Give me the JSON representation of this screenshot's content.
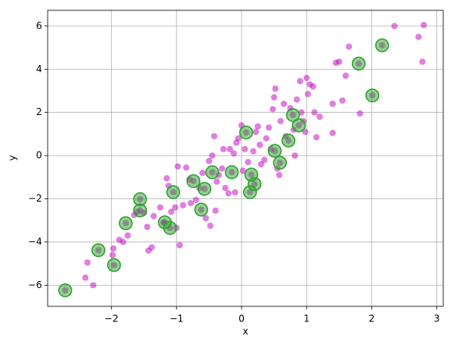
{
  "chart_data": {
    "type": "scatter",
    "x_label": "x",
    "y_label": "y",
    "xlim": [
      -2.98,
      3.1
    ],
    "ylim": [
      -6.98,
      6.73
    ],
    "xticks": [
      {
        "value": -2,
        "label": "−2"
      },
      {
        "value": -1,
        "label": "−1"
      },
      0,
      1,
      2,
      3
    ],
    "yticks": [
      {
        "value": -6,
        "label": "−6"
      },
      {
        "value": -4,
        "label": "−4"
      },
      {
        "value": -2,
        "label": "−2"
      },
      0,
      2,
      4,
      6
    ],
    "grid": true,
    "series": [
      {
        "color": "#bf00bf",
        "x": [
          -2.71,
          -2.4,
          -2.37,
          -2.28,
          -2.2,
          -1.96,
          -1.98,
          -1.97,
          -1.88,
          -1.82,
          -1.78,
          -1.75,
          -1.65,
          -1.6,
          -1.56,
          -1.56,
          -1.5,
          -1.45,
          -1.43,
          -1.38,
          -1.35,
          -1.25,
          -1.2,
          -1.18,
          -1.15,
          -1.12,
          -1.1,
          -1.08,
          -1.05,
          -1.02,
          -1.0,
          -0.98,
          -0.95,
          -0.9,
          -0.85,
          -0.8,
          -0.78,
          -0.74,
          -0.7,
          -0.65,
          -0.62,
          -0.6,
          -0.57,
          -0.55,
          -0.5,
          -0.48,
          -0.45,
          -0.45,
          -0.42,
          -0.4,
          -0.38,
          -0.35,
          -0.3,
          -0.28,
          -0.25,
          -0.2,
          -0.18,
          -0.15,
          -0.12,
          -0.1,
          -0.08,
          -0.05,
          0.0,
          0.02,
          0.05,
          0.07,
          0.1,
          0.13,
          0.15,
          0.18,
          0.2,
          0.22,
          0.25,
          0.28,
          0.3,
          0.35,
          0.38,
          0.42,
          0.45,
          0.48,
          0.5,
          0.51,
          0.52,
          0.55,
          0.58,
          0.59,
          0.6,
          0.65,
          0.68,
          0.72,
          0.75,
          0.79,
          0.8,
          0.82,
          0.85,
          0.88,
          0.9,
          0.92,
          0.95,
          0.98,
          1.0,
          1.02,
          1.05,
          1.1,
          1.12,
          1.15,
          1.2,
          1.4,
          1.4,
          1.45,
          1.5,
          1.55,
          1.6,
          1.65,
          1.8,
          1.82,
          2.01,
          2.16,
          2.35,
          2.72,
          2.78,
          2.8
        ],
        "values": [
          -6.24,
          -5.65,
          -4.95,
          -6.0,
          -4.38,
          -5.07,
          -4.6,
          -4.3,
          -3.9,
          -4.0,
          -3.13,
          -3.7,
          -2.75,
          -2.6,
          -2.02,
          -2.54,
          -2.65,
          -3.3,
          -4.4,
          -4.25,
          -2.8,
          -2.4,
          -3.1,
          -3.09,
          -1.05,
          -1.4,
          -3.35,
          -2.6,
          -1.69,
          -2.4,
          -3.35,
          -0.5,
          -4.15,
          -2.3,
          -0.55,
          -1.1,
          -2.2,
          -1.18,
          -2.05,
          -1.5,
          -2.5,
          -0.8,
          -1.54,
          -2.9,
          -0.25,
          -3.25,
          -0.77,
          0.0,
          0.9,
          -2.55,
          -1.2,
          -0.9,
          -0.6,
          0.3,
          -1.5,
          -1.75,
          0.3,
          -0.77,
          0.1,
          -1.7,
          0.6,
          0.8,
          1.4,
          -0.7,
          0.3,
          1.07,
          -0.3,
          -1.69,
          -0.88,
          0.2,
          -1.32,
          1.1,
          1.35,
          0.5,
          -0.4,
          -0.2,
          0.8,
          1.3,
          0.3,
          2.15,
          2.7,
          0.22,
          3.1,
          -0.6,
          -0.9,
          -0.33,
          1.6,
          2.4,
          0.9,
          0.7,
          2.2,
          1.88,
          1.2,
          0.0,
          2.6,
          1.4,
          3.45,
          2.0,
          1.6,
          1.1,
          3.6,
          2.85,
          3.3,
          3.2,
          2.0,
          0.85,
          1.8,
          2.4,
          1.05,
          4.3,
          4.35,
          2.55,
          3.7,
          5.05,
          4.26,
          1.95,
          2.79,
          5.11,
          6.0,
          5.5,
          4.35,
          6.05
        ]
      },
      {
        "color": "#2ca02c",
        "x": [
          -2.71,
          -2.2,
          -1.96,
          -1.78,
          -1.56,
          -1.56,
          -1.18,
          -1.1,
          -1.05,
          -0.74,
          -0.62,
          -0.57,
          -0.45,
          -0.15,
          0.07,
          0.13,
          0.15,
          0.2,
          0.51,
          0.59,
          0.72,
          0.79,
          0.88,
          1.8,
          2.01,
          2.16
        ],
        "values": [
          -6.24,
          -4.38,
          -5.07,
          -3.13,
          -2.02,
          -2.54,
          -3.09,
          -3.35,
          -1.69,
          -1.18,
          -2.5,
          -1.54,
          -0.77,
          -0.77,
          1.07,
          -1.69,
          -0.88,
          -1.32,
          0.22,
          -0.33,
          0.7,
          1.88,
          1.4,
          4.26,
          2.79,
          5.11
        ]
      }
    ]
  }
}
